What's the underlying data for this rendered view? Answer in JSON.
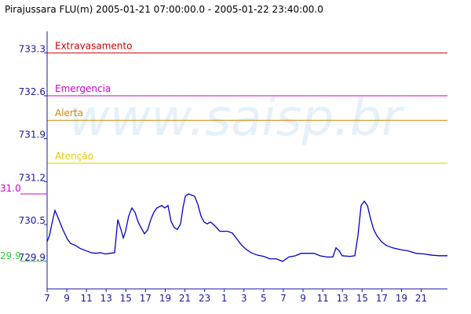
{
  "chart_data": {
    "type": "line",
    "title": "Pirajussara FLU(m) 2005-01-21 07:00:00.0 - 2005-01-22 23:40:00.0",
    "watermark": "www.saisp.br",
    "color": "#0000cc",
    "x": [
      0,
      0.24,
      0.48,
      0.8,
      1.12,
      1.59,
      2.07,
      2.39,
      2.87,
      3.35,
      3.99,
      4.47,
      4.94,
      5.42,
      5.9,
      6.38,
      6.86,
      7.18,
      7.5,
      7.74,
      7.97,
      8.29,
      8.61,
      8.93,
      9.25,
      9.57,
      9.89,
      10.21,
      10.53,
      10.85,
      11.16,
      11.64,
      11.96,
      12.28,
      12.6,
      12.92,
      13.24,
      13.56,
      13.8,
      14.04,
      14.35,
      14.67,
      14.99,
      15.31,
      15.63,
      15.95,
      16.27,
      16.59,
      16.91,
      17.22,
      17.54,
      17.94,
      18.34,
      18.82,
      19.3,
      19.78,
      20.26,
      20.73,
      21.37,
      22.01,
      22.65,
      23.29,
      23.92,
      24.56,
      25.2,
      25.84,
      26.48,
      27.11,
      27.75,
      28.39,
      29.03,
      29.35,
      29.67,
      29.98,
      30.78,
      31.26,
      31.58,
      31.9,
      32.22,
      32.54,
      32.85,
      33.17,
      33.49,
      33.97,
      34.45,
      35.09,
      35.89,
      36.68,
      37.48,
      38.28,
      39.07,
      39.87,
      40.67
    ],
    "values": [
      730.22,
      730.32,
      730.51,
      730.73,
      730.61,
      730.42,
      730.26,
      730.19,
      730.16,
      730.11,
      730.07,
      730.04,
      730.03,
      730.04,
      730.02,
      730.03,
      730.04,
      730.58,
      730.42,
      730.28,
      730.39,
      730.64,
      730.77,
      730.7,
      730.54,
      730.44,
      730.35,
      730.41,
      730.58,
      730.7,
      730.77,
      730.81,
      730.77,
      730.81,
      730.55,
      730.45,
      730.42,
      730.51,
      730.77,
      730.96,
      731.0,
      730.98,
      730.96,
      730.83,
      730.64,
      730.54,
      730.51,
      730.54,
      730.5,
      730.45,
      730.39,
      730.39,
      730.39,
      730.36,
      730.26,
      730.16,
      730.09,
      730.04,
      730.0,
      729.98,
      729.94,
      729.94,
      729.9,
      729.97,
      729.99,
      730.03,
      730.03,
      730.03,
      729.99,
      729.97,
      729.97,
      730.12,
      730.07,
      729.99,
      729.98,
      729.99,
      730.32,
      730.81,
      730.88,
      730.81,
      730.6,
      730.42,
      730.32,
      730.22,
      730.16,
      730.12,
      730.09,
      730.07,
      730.03,
      730.02,
      730.0,
      729.99,
      729.99
    ],
    "xlim": [
      0,
      40.67
    ],
    "xticks": [
      {
        "value": 0,
        "label": "7"
      },
      {
        "value": 2,
        "label": "9"
      },
      {
        "value": 4,
        "label": "11"
      },
      {
        "value": 6,
        "label": "13"
      },
      {
        "value": 8,
        "label": "15"
      },
      {
        "value": 10,
        "label": "17"
      },
      {
        "value": 12,
        "label": "19"
      },
      {
        "value": 14,
        "label": "21"
      },
      {
        "value": 16,
        "label": "23"
      },
      {
        "value": 18,
        "label": "1"
      },
      {
        "value": 20,
        "label": "3"
      },
      {
        "value": 22,
        "label": "5"
      },
      {
        "value": 24,
        "label": "7"
      },
      {
        "value": 26,
        "label": "9"
      },
      {
        "value": 28,
        "label": "11"
      },
      {
        "value": 30,
        "label": "13"
      },
      {
        "value": 32,
        "label": "15"
      },
      {
        "value": 34,
        "label": "17"
      },
      {
        "value": 36,
        "label": "19"
      },
      {
        "value": 38,
        "label": "21"
      }
    ],
    "ylim": [
      729.45,
      733.65
    ],
    "yticks": [
      729.9,
      730.5,
      731.2,
      731.9,
      732.6,
      733.3
    ],
    "thresholds": [
      {
        "name": "Extravasamento",
        "value": 733.3,
        "color": "#cc0000"
      },
      {
        "name": "Emergencia",
        "value": 732.6,
        "color": "#cc00cc"
      },
      {
        "name": "Alerta",
        "value": 732.2,
        "color": "#cc8800"
      },
      {
        "name": "Atenção",
        "value": 731.5,
        "color": "#e6c800"
      }
    ],
    "markers": [
      {
        "value": 731.0,
        "label": "31.0",
        "color": "#cc00cc"
      },
      {
        "value": 729.9,
        "label": "29.9",
        "color": "#33cc33"
      }
    ]
  }
}
